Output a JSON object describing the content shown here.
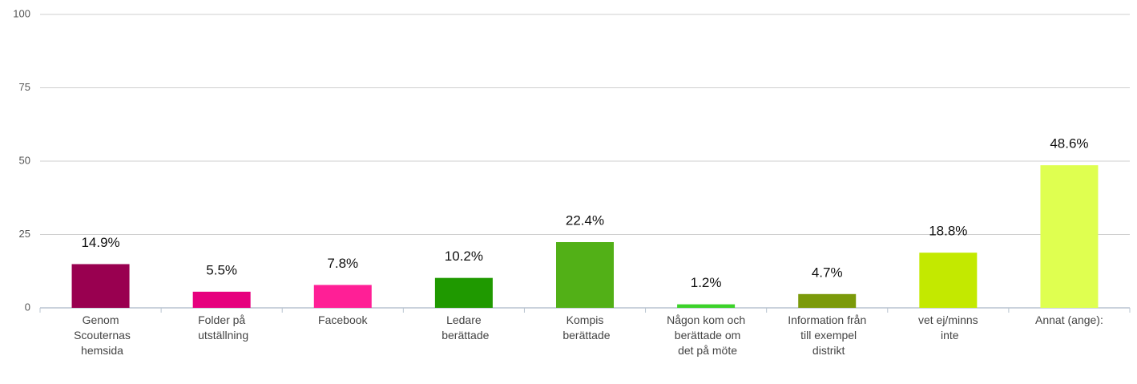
{
  "chart_data": {
    "type": "bar",
    "categories": [
      "Genom Scouternas hemsida",
      "Folder på utställning",
      "Facebook",
      "Ledare berättade",
      "Kompis berättade",
      "Någon kom och berättade om det på möte",
      "Information från till exempel distrikt",
      "vet ej/minns inte",
      "Annat (ange):"
    ],
    "values": [
      14.9,
      5.5,
      7.8,
      10.2,
      22.4,
      1.2,
      4.7,
      18.8,
      48.6
    ],
    "value_labels": [
      "14.9%",
      "5.5%",
      "7.8%",
      "10.2%",
      "22.4%",
      "1.2%",
      "4.7%",
      "18.8%",
      "48.6%"
    ],
    "colors": [
      "#990050",
      "#e6007e",
      "#ff1f96",
      "#1f9900",
      "#52b017",
      "#3cd22a",
      "#7b9a0a",
      "#c3e900",
      "#dfff50"
    ],
    "ylim": [
      0,
      100
    ],
    "yticks": [
      0,
      25,
      50,
      75,
      100
    ],
    "grid": true
  }
}
